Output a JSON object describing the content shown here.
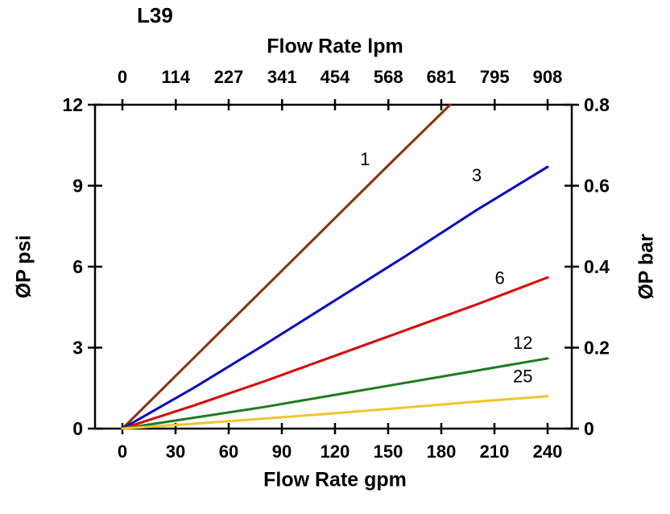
{
  "title": "L39",
  "chart_data": {
    "type": "line",
    "title": "L39",
    "grid": false,
    "legend": "inline-labels",
    "axes": {
      "top": {
        "label": "Flow Rate lpm",
        "ticks": [
          0,
          114,
          227,
          341,
          454,
          568,
          681,
          795,
          908
        ],
        "range": [
          0,
          908
        ]
      },
      "bottom": {
        "label": "Flow Rate gpm",
        "ticks": [
          0,
          30,
          60,
          90,
          120,
          150,
          180,
          210,
          240
        ],
        "range": [
          0,
          240
        ]
      },
      "left": {
        "label": "ØP psi",
        "ticks": [
          0,
          3,
          6,
          9,
          12
        ],
        "range": [
          0,
          12
        ]
      },
      "right": {
        "label": "ØP bar",
        "ticks": [
          0,
          0.2,
          0.4,
          0.6,
          0.8
        ],
        "range": [
          0,
          0.8
        ]
      }
    },
    "series": [
      {
        "name": "1",
        "color": "#8B3103",
        "label_at": [
          137,
          10.0
        ],
        "points": [
          [
            0,
            0
          ],
          [
            30,
            1.95
          ],
          [
            60,
            3.9
          ],
          [
            90,
            5.85
          ],
          [
            120,
            7.8
          ],
          [
            150,
            9.75
          ],
          [
            185,
            12
          ]
        ]
      },
      {
        "name": "3",
        "color": "#0000CC",
        "label_at": [
          200,
          9.4
        ],
        "points": [
          [
            0,
            0
          ],
          [
            40,
            1.5
          ],
          [
            80,
            3.1
          ],
          [
            120,
            4.75
          ],
          [
            160,
            6.4
          ],
          [
            200,
            8.1
          ],
          [
            240,
            9.7
          ]
        ]
      },
      {
        "name": "6",
        "color": "#DD0000",
        "label_at": [
          213,
          5.6
        ],
        "points": [
          [
            0,
            0
          ],
          [
            40,
            0.85
          ],
          [
            80,
            1.75
          ],
          [
            120,
            2.7
          ],
          [
            160,
            3.65
          ],
          [
            200,
            4.6
          ],
          [
            240,
            5.6
          ]
        ]
      },
      {
        "name": "12",
        "color": "#1E7B1E",
        "label_at": [
          226,
          3.2
        ],
        "points": [
          [
            0,
            0
          ],
          [
            40,
            0.4
          ],
          [
            80,
            0.8
          ],
          [
            120,
            1.25
          ],
          [
            160,
            1.7
          ],
          [
            200,
            2.15
          ],
          [
            240,
            2.6
          ]
        ]
      },
      {
        "name": "25",
        "color": "#EDC62C",
        "label_at": [
          226,
          1.95
        ],
        "points": [
          [
            0,
            0
          ],
          [
            40,
            0.18
          ],
          [
            80,
            0.37
          ],
          [
            120,
            0.57
          ],
          [
            160,
            0.78
          ],
          [
            200,
            1.0
          ],
          [
            240,
            1.2
          ]
        ]
      }
    ]
  }
}
